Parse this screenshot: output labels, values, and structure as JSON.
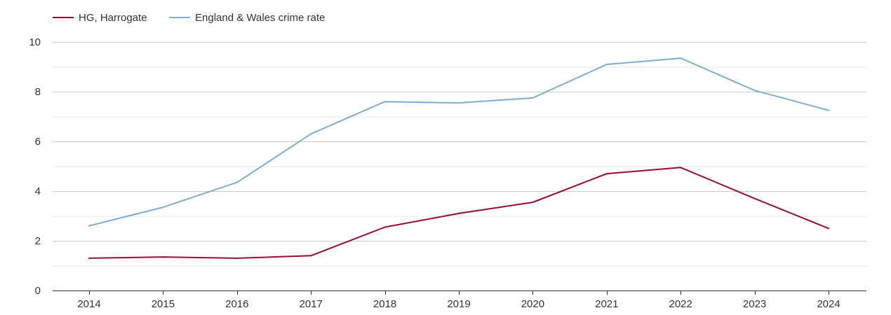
{
  "chart_data": {
    "type": "line",
    "categories": [
      "2014",
      "2015",
      "2016",
      "2017",
      "2018",
      "2019",
      "2020",
      "2021",
      "2022",
      "2023",
      "2024"
    ],
    "series": [
      {
        "name": "HG, Harrogate",
        "color": "#9b0a31",
        "values": [
          1.3,
          1.35,
          1.3,
          1.4,
          2.55,
          3.1,
          3.55,
          4.7,
          4.95,
          3.7,
          2.5
        ]
      },
      {
        "name": "England & Wales crime rate",
        "color": "#78afd2",
        "values": [
          2.6,
          3.35,
          4.35,
          6.3,
          7.6,
          7.55,
          7.75,
          9.1,
          9.35,
          8.05,
          7.25
        ]
      }
    ],
    "yticks": [
      "0",
      "2",
      "4",
      "6",
      "8",
      "10"
    ],
    "ylim": [
      0,
      10
    ],
    "grid": true,
    "legend_position": "top-left",
    "title": "",
    "xlabel": "",
    "ylabel": ""
  }
}
